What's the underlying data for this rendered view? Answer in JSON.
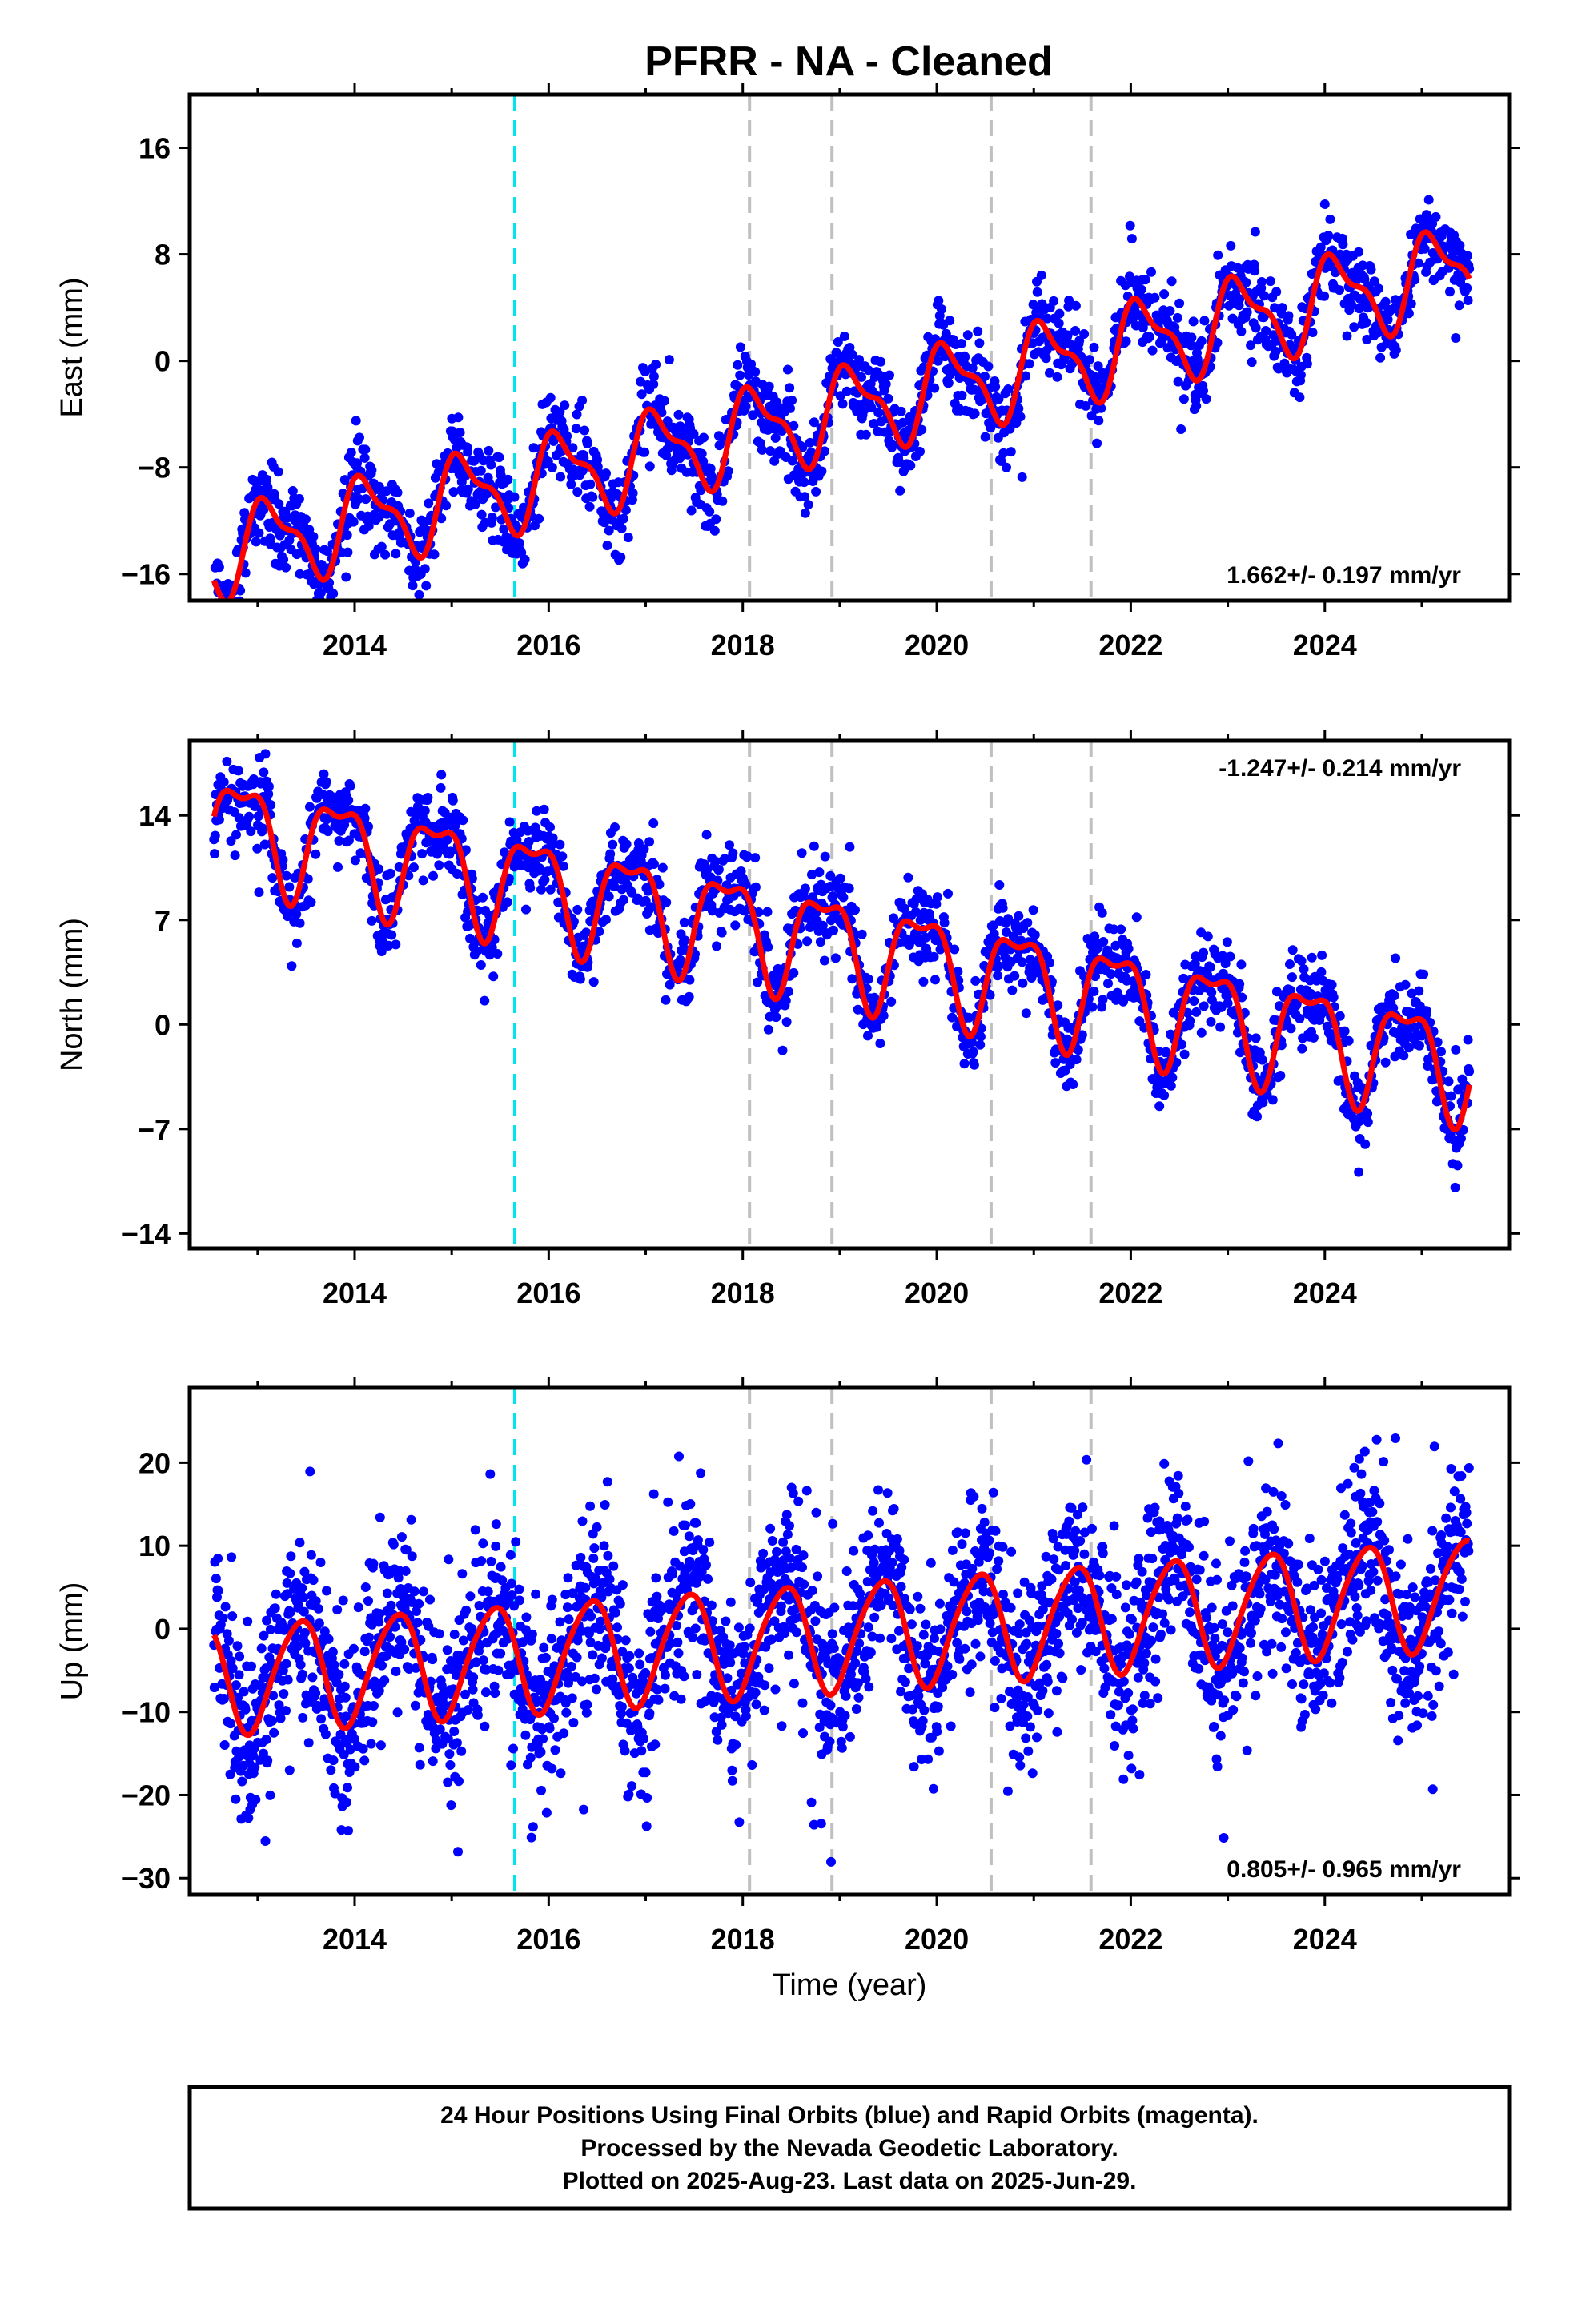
{
  "page_title": "PFRR  - NA - Cleaned",
  "colors": {
    "points": "#0000ff",
    "fit": "#ff0000",
    "equipment_change": "#00e5ee",
    "event": "#c0c0c0"
  },
  "footer": {
    "line1": "24 Hour Positions Using Final Orbits (blue) and Rapid Orbits (magenta).",
    "line2": "Processed by the Nevada Geodetic Laboratory.",
    "line3": "Plotted on 2025-Aug-23. Last data on 2025-Jun-29."
  },
  "chart_data": [
    {
      "type": "scatter",
      "component": "east",
      "ylabel": "East (mm)",
      "xlabel": "",
      "rate_label": "1.662+/- 0.197 mm/yr",
      "xlim": [
        2012.3,
        2025.9
      ],
      "ylim": [
        -18,
        20
      ],
      "x_ticks": [
        2014,
        2016,
        2018,
        2020,
        2022,
        2024
      ],
      "y_ticks": [
        -16,
        -8,
        0,
        8,
        16
      ],
      "cyan_lines": [
        2015.65
      ],
      "gray_lines": [
        2018.07,
        2018.92,
        2020.56,
        2021.59
      ],
      "data_range": [
        2012.55,
        2025.49
      ],
      "fit": {
        "offset": -14.5,
        "rate": 1.662,
        "annual_amp": 3.0,
        "annual_phase": 0.8,
        "semi_amp": 1.2,
        "semi_phase": 1.9,
        "noise": 1.5
      }
    },
    {
      "type": "scatter",
      "component": "north",
      "ylabel": "North (mm)",
      "xlabel": "",
      "rate_label": "-1.247+/- 0.214 mm/yr",
      "xlim": [
        2012.3,
        2025.9
      ],
      "ylim": [
        -15,
        19
      ],
      "x_ticks": [
        2014,
        2016,
        2018,
        2020,
        2022,
        2024
      ],
      "y_ticks": [
        -14,
        -7,
        0,
        7,
        14
      ],
      "cyan_lines": [
        2015.65
      ],
      "gray_lines": [
        2018.07,
        2018.92,
        2020.56,
        2021.59
      ],
      "data_range": [
        2012.55,
        2025.49
      ],
      "fit": {
        "offset": 13.5,
        "rate": -1.247,
        "annual_amp": 3.3,
        "annual_phase": 2.6,
        "semi_amp": 1.3,
        "semi_phase": 0.5,
        "noise": 1.4
      }
    },
    {
      "type": "scatter",
      "component": "up",
      "ylabel": "Up (mm)",
      "xlabel": "Time (year)",
      "rate_label": "0.805+/- 0.965 mm/yr",
      "xlim": [
        2012.3,
        2025.9
      ],
      "ylim": [
        -32,
        29
      ],
      "x_ticks": [
        2014,
        2016,
        2018,
        2020,
        2022,
        2024
      ],
      "y_ticks": [
        -30,
        -20,
        -10,
        0,
        10,
        20
      ],
      "cyan_lines": [
        2015.65
      ],
      "gray_lines": [
        2018.07,
        2018.92,
        2020.56,
        2021.59
      ],
      "data_range": [
        2012.55,
        2025.49
      ],
      "fit": {
        "offset": -6.0,
        "rate": 0.805,
        "annual_amp": 6.5,
        "annual_phase": -1.1,
        "semi_amp": 0.8,
        "semi_phase": 0.3,
        "noise": 5.5
      }
    }
  ]
}
